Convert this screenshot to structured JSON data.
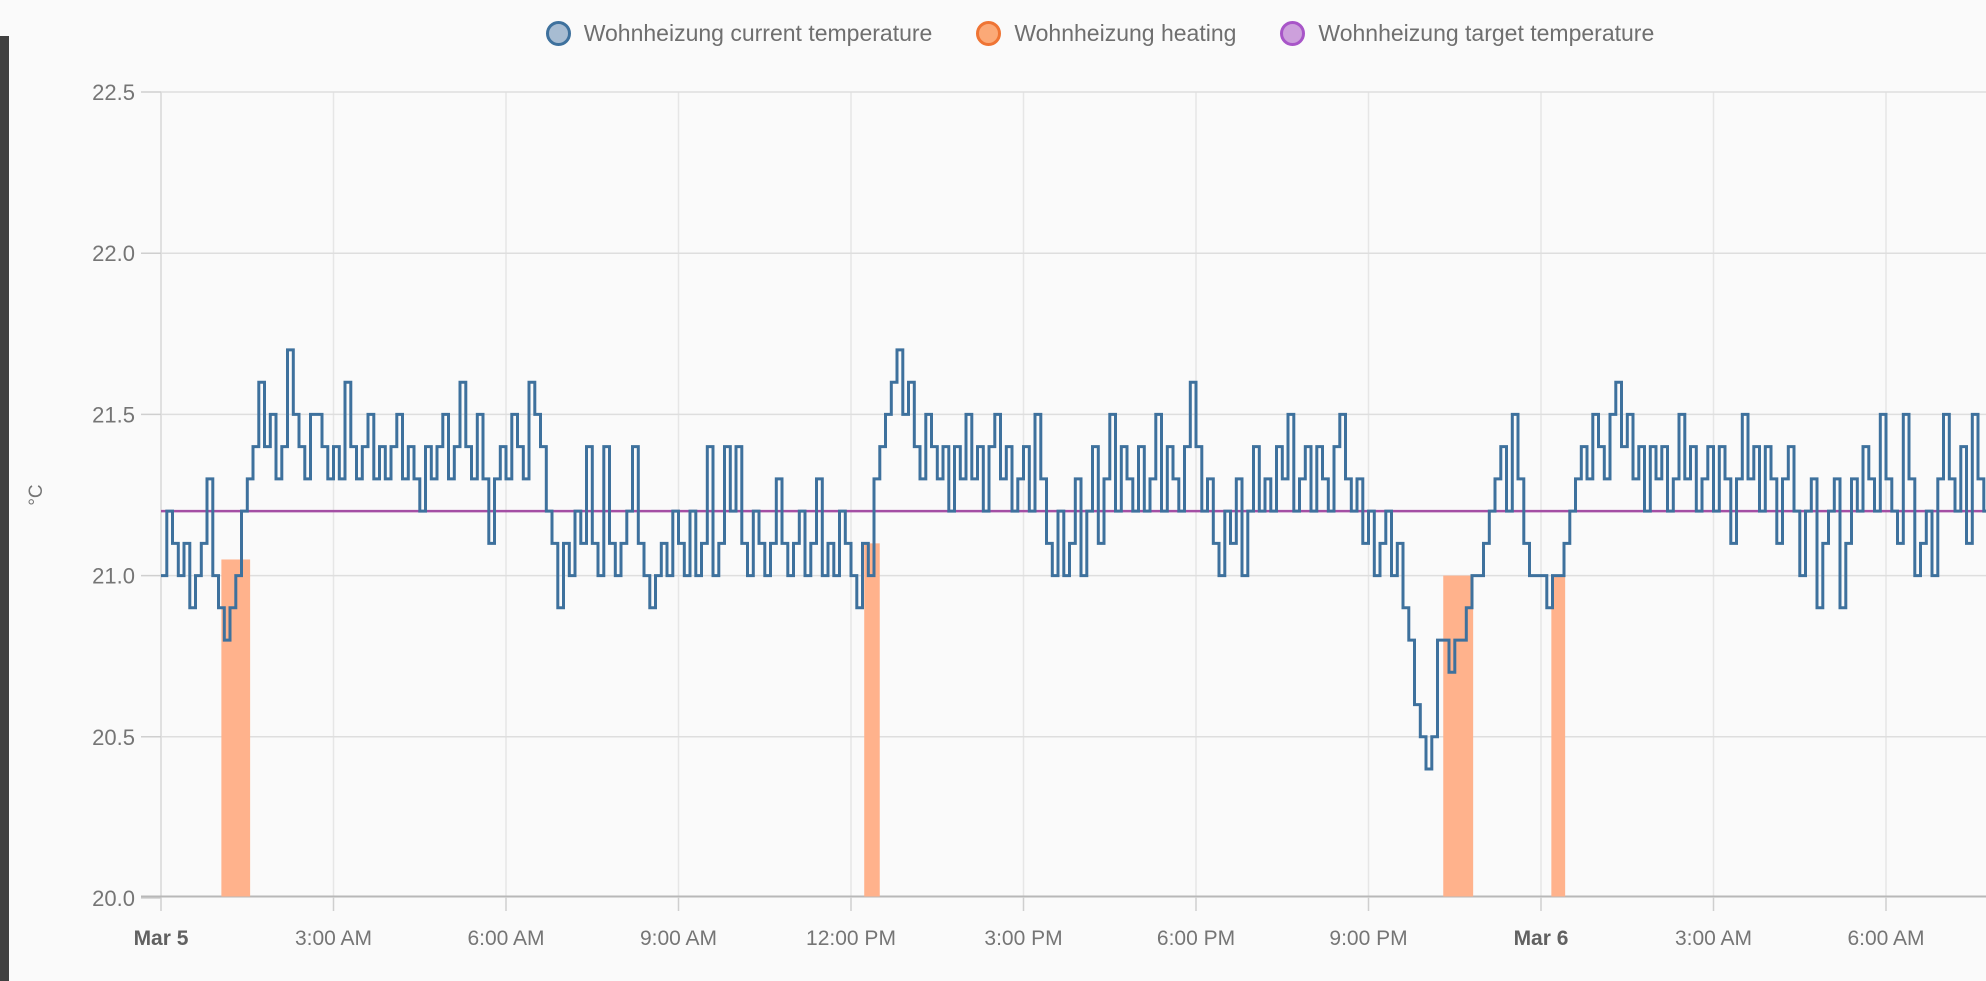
{
  "legend": {
    "items": [
      {
        "label": "Wohnheizung current temperature",
        "fill": "#A7BCD2",
        "border": "#3E719D"
      },
      {
        "label": "Wohnheizung heating",
        "fill": "#FBA977",
        "border": "#EF7434"
      },
      {
        "label": "Wohnheizung target temperature",
        "fill": "#CDA0DC",
        "border": "#A855C8"
      }
    ]
  },
  "y_axis": {
    "unit": "°C",
    "ticks": [
      {
        "label": "22.5",
        "v": 22.5
      },
      {
        "label": "22.0",
        "v": 22.0
      },
      {
        "label": "21.5",
        "v": 21.5
      },
      {
        "label": "21.0",
        "v": 21.0
      },
      {
        "label": "20.5",
        "v": 20.5
      },
      {
        "label": "20.0",
        "v": 20.0
      }
    ]
  },
  "x_axis": {
    "ticks": [
      {
        "label": "Mar 5",
        "t": 0,
        "bold": true
      },
      {
        "label": "3:00 AM",
        "t": 3,
        "bold": false
      },
      {
        "label": "6:00 AM",
        "t": 6,
        "bold": false
      },
      {
        "label": "9:00 AM",
        "t": 9,
        "bold": false
      },
      {
        "label": "12:00 PM",
        "t": 12,
        "bold": false
      },
      {
        "label": "3:00 PM",
        "t": 15,
        "bold": false
      },
      {
        "label": "6:00 PM",
        "t": 18,
        "bold": false
      },
      {
        "label": "9:00 PM",
        "t": 21,
        "bold": false
      },
      {
        "label": "Mar 6",
        "t": 24,
        "bold": true
      },
      {
        "label": "3:00 AM",
        "t": 27,
        "bold": false
      },
      {
        "label": "6:00 AM",
        "t": 30,
        "bold": false
      }
    ]
  },
  "chart_data": {
    "type": "line",
    "title": "",
    "xlabel": "",
    "ylabel": "°C",
    "ylim": [
      20.0,
      22.5
    ],
    "xlim_hours_since_mar5_midnight": [
      0,
      31.7
    ],
    "grid": true,
    "legend_position": "top",
    "sample_interval_hours": 0.1,
    "series": [
      {
        "name": "Wohnheizung current temperature",
        "type": "step-line",
        "color": "#3E719D",
        "start_hour": 0,
        "values": [
          21.0,
          21.2,
          21.1,
          21.0,
          21.1,
          20.9,
          21.0,
          21.1,
          21.3,
          21.0,
          20.9,
          20.8,
          20.9,
          21.0,
          21.2,
          21.3,
          21.4,
          21.6,
          21.4,
          21.5,
          21.3,
          21.4,
          21.7,
          21.5,
          21.4,
          21.3,
          21.5,
          21.5,
          21.4,
          21.3,
          21.4,
          21.3,
          21.6,
          21.4,
          21.3,
          21.4,
          21.5,
          21.3,
          21.4,
          21.3,
          21.4,
          21.5,
          21.3,
          21.4,
          21.3,
          21.2,
          21.4,
          21.3,
          21.4,
          21.5,
          21.3,
          21.4,
          21.6,
          21.4,
          21.3,
          21.5,
          21.3,
          21.1,
          21.3,
          21.4,
          21.3,
          21.5,
          21.4,
          21.3,
          21.6,
          21.5,
          21.4,
          21.2,
          21.1,
          20.9,
          21.1,
          21.0,
          21.2,
          21.1,
          21.4,
          21.1,
          21.0,
          21.4,
          21.1,
          21.0,
          21.1,
          21.2,
          21.4,
          21.1,
          21.0,
          20.9,
          21.0,
          21.1,
          21.0,
          21.2,
          21.1,
          21.0,
          21.2,
          21.0,
          21.1,
          21.4,
          21.0,
          21.1,
          21.4,
          21.2,
          21.4,
          21.1,
          21.0,
          21.2,
          21.1,
          21.0,
          21.1,
          21.3,
          21.1,
          21.0,
          21.1,
          21.2,
          21.0,
          21.1,
          21.3,
          21.0,
          21.1,
          21.0,
          21.2,
          21.1,
          21.0,
          20.9,
          21.1,
          21.0,
          21.3,
          21.4,
          21.5,
          21.6,
          21.7,
          21.5,
          21.6,
          21.4,
          21.3,
          21.5,
          21.4,
          21.3,
          21.4,
          21.2,
          21.4,
          21.3,
          21.5,
          21.3,
          21.4,
          21.2,
          21.4,
          21.5,
          21.3,
          21.4,
          21.2,
          21.3,
          21.4,
          21.2,
          21.5,
          21.3,
          21.1,
          21.0,
          21.2,
          21.0,
          21.1,
          21.3,
          21.0,
          21.2,
          21.4,
          21.1,
          21.3,
          21.5,
          21.2,
          21.4,
          21.3,
          21.2,
          21.4,
          21.2,
          21.3,
          21.5,
          21.2,
          21.4,
          21.3,
          21.2,
          21.4,
          21.6,
          21.4,
          21.2,
          21.3,
          21.1,
          21.0,
          21.2,
          21.1,
          21.3,
          21.0,
          21.2,
          21.4,
          21.2,
          21.3,
          21.2,
          21.4,
          21.3,
          21.5,
          21.2,
          21.3,
          21.4,
          21.2,
          21.4,
          21.3,
          21.2,
          21.4,
          21.5,
          21.3,
          21.2,
          21.3,
          21.1,
          21.2,
          21.0,
          21.1,
          21.2,
          21.0,
          21.1,
          20.9,
          20.8,
          20.6,
          20.5,
          20.4,
          20.5,
          20.8,
          20.8,
          20.7,
          20.8,
          20.8,
          20.9,
          21.0,
          21.0,
          21.1,
          21.2,
          21.3,
          21.4,
          21.2,
          21.5,
          21.3,
          21.1,
          21.0,
          21.0,
          21.0,
          20.9,
          21.0,
          21.0,
          21.1,
          21.2,
          21.3,
          21.4,
          21.3,
          21.5,
          21.4,
          21.3,
          21.5,
          21.6,
          21.4,
          21.5,
          21.3,
          21.4,
          21.2,
          21.4,
          21.3,
          21.4,
          21.2,
          21.3,
          21.5,
          21.3,
          21.4,
          21.2,
          21.3,
          21.4,
          21.2,
          21.4,
          21.3,
          21.1,
          21.3,
          21.5,
          21.3,
          21.4,
          21.2,
          21.4,
          21.3,
          21.1,
          21.3,
          21.4,
          21.2,
          21.0,
          21.2,
          21.3,
          20.9,
          21.1,
          21.2,
          21.3,
          20.9,
          21.1,
          21.3,
          21.2,
          21.4,
          21.3,
          21.2,
          21.5,
          21.3,
          21.2,
          21.1,
          21.5,
          21.3,
          21.0,
          21.1,
          21.2,
          21.0,
          21.3,
          21.5,
          21.3,
          21.2,
          21.4,
          21.1,
          21.5,
          21.3,
          21.2
        ]
      },
      {
        "name": "Wohnheizung heating",
        "type": "bar-intervals",
        "color": "#FFB28C",
        "intervals": [
          {
            "start": 1.05,
            "end": 1.55,
            "top": 21.05
          },
          {
            "start": 12.23,
            "end": 12.5,
            "top": 21.1
          },
          {
            "start": 22.3,
            "end": 22.82,
            "top": 21.0
          },
          {
            "start": 24.18,
            "end": 24.42,
            "top": 21.0
          }
        ]
      },
      {
        "name": "Wohnheizung target temperature",
        "type": "line",
        "color": "#A44FA4",
        "value": 21.2
      }
    ]
  },
  "colors": {
    "background": "#fafafa",
    "grid_h": "#dedede",
    "grid_v": "#e6e6e6",
    "axis_line": "#b8b8b8",
    "tick": "#cfcfcf",
    "label": "#757575"
  }
}
